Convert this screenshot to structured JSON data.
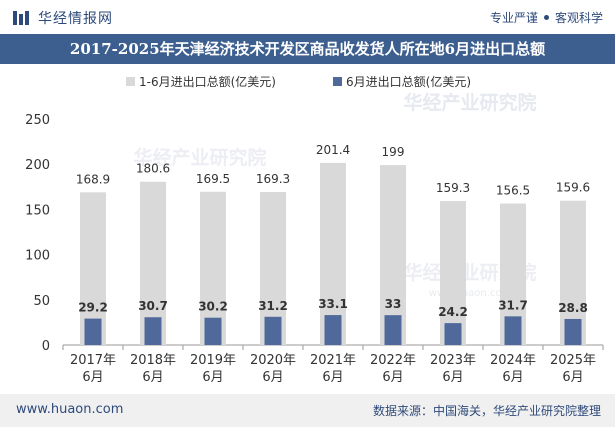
{
  "header": {
    "brand": "华经情报网",
    "taglines": [
      "专业严谨",
      "客观科学"
    ]
  },
  "title": "2017-2025年天津经济技术开发区商品收发货人所在地6月进出口总额",
  "watermark": {
    "text": "华经产业研究院",
    "url": "www.huaon.com"
  },
  "footer": {
    "url": "www.huaon.com",
    "source": "数据来源：中国海关，华经产业研究院整理"
  },
  "colors": {
    "brand": "#2e4a7a",
    "title_bar": "#3d5f8f",
    "series_total": "#d9d9d9",
    "series_june": "#4f6a9a"
  },
  "chart_data": {
    "type": "bar",
    "categories": [
      "2017年\n6月",
      "2018年\n6月",
      "2019年\n6月",
      "2020年\n6月",
      "2021年\n6月",
      "2022年\n6月",
      "2023年\n6月",
      "2024年\n6月",
      "2025年\n6月"
    ],
    "series": [
      {
        "name": "1-6月进出口总额(亿美元)",
        "values": [
          168.9,
          180.6,
          169.5,
          169.3,
          201.4,
          199,
          159.3,
          156.5,
          159.6
        ],
        "color": "#d9d9d9"
      },
      {
        "name": "6月进出口总额(亿美元)",
        "values": [
          29.2,
          30.7,
          30.2,
          31.2,
          33.1,
          33,
          24.2,
          31.7,
          28.8
        ],
        "color": "#4f6a9a"
      }
    ],
    "ylim": [
      0,
      250
    ],
    "yticks": [
      0,
      50,
      100,
      150,
      200,
      250
    ],
    "legend_position": "top-center",
    "grid": false
  }
}
